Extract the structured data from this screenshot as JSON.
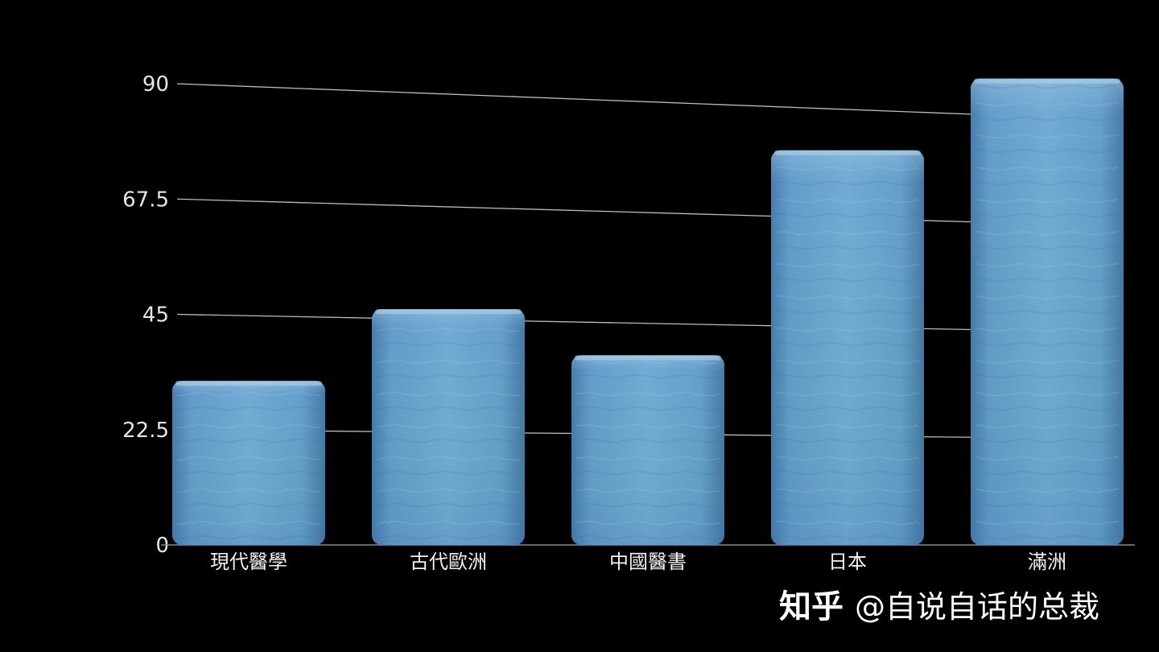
{
  "chart_data": {
    "type": "bar",
    "title": "",
    "xlabel": "",
    "ylabel": "",
    "categories": [
      "現代醫學",
      "古代歐洲",
      "中國醫書",
      "日本",
      "滿洲"
    ],
    "values": [
      32,
      46,
      37,
      77,
      91
    ],
    "ylim": [
      0,
      90
    ],
    "yticks": [
      0,
      22.5,
      45,
      67.5,
      90
    ],
    "ytick_labels": [
      "0",
      "22.5",
      "45",
      "67.5",
      "90"
    ],
    "grid": true,
    "legend": "none",
    "colors": {
      "bar_top": "#4f86b8",
      "bar_mid": "#6aa4cf",
      "bar_accent": "#68b5b0",
      "grid": "#bdbdbd",
      "background": "#000000"
    }
  },
  "watermark": {
    "logo": "知乎",
    "handle": "@自说自话的总裁"
  }
}
